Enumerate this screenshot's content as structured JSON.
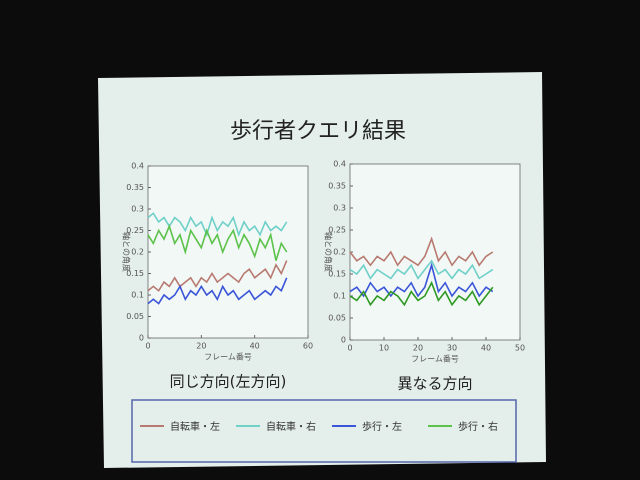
{
  "slide_title": "歩行者クエリ結果",
  "chart_data": [
    {
      "type": "line",
      "title": "同じ方向(左方向)",
      "x_label": "フレーム番号",
      "y_label": "軸との角度",
      "xlim": [
        0,
        60
      ],
      "xticks": [
        0,
        20,
        40,
        60
      ],
      "ylim": [
        0,
        0.4
      ],
      "yticks": [
        0,
        0.05,
        0.1,
        0.15,
        0.2,
        0.25,
        0.3,
        0.35,
        0.4
      ],
      "x": [
        0,
        2,
        4,
        6,
        8,
        10,
        12,
        14,
        16,
        18,
        20,
        22,
        24,
        26,
        28,
        30,
        32,
        34,
        36,
        38,
        40,
        42,
        44,
        46,
        48,
        50,
        52
      ],
      "series": [
        {
          "name": "自転車・左",
          "color": "#b87a70",
          "values": [
            0.11,
            0.12,
            0.11,
            0.13,
            0.12,
            0.14,
            0.12,
            0.13,
            0.14,
            0.12,
            0.14,
            0.13,
            0.15,
            0.13,
            0.14,
            0.15,
            0.14,
            0.13,
            0.15,
            0.16,
            0.14,
            0.15,
            0.16,
            0.14,
            0.17,
            0.15,
            0.18
          ]
        },
        {
          "name": "自転車・右",
          "color": "#6fd0c8",
          "values": [
            0.28,
            0.29,
            0.27,
            0.28,
            0.26,
            0.28,
            0.27,
            0.25,
            0.28,
            0.26,
            0.27,
            0.24,
            0.28,
            0.25,
            0.27,
            0.26,
            0.28,
            0.24,
            0.27,
            0.25,
            0.26,
            0.24,
            0.27,
            0.25,
            0.26,
            0.25,
            0.27
          ]
        },
        {
          "name": "歩行・左",
          "color": "#3a55d8",
          "values": [
            0.08,
            0.09,
            0.08,
            0.1,
            0.09,
            0.1,
            0.12,
            0.09,
            0.11,
            0.1,
            0.12,
            0.1,
            0.11,
            0.09,
            0.12,
            0.1,
            0.11,
            0.09,
            0.1,
            0.11,
            0.09,
            0.1,
            0.11,
            0.1,
            0.12,
            0.11,
            0.14
          ]
        },
        {
          "name": "歩行・右",
          "color": "#5cc24a",
          "values": [
            0.24,
            0.22,
            0.25,
            0.23,
            0.26,
            0.22,
            0.24,
            0.2,
            0.25,
            0.23,
            0.21,
            0.25,
            0.22,
            0.24,
            0.2,
            0.23,
            0.25,
            0.21,
            0.24,
            0.22,
            0.19,
            0.23,
            0.21,
            0.24,
            0.18,
            0.22,
            0.2
          ]
        }
      ]
    },
    {
      "type": "line",
      "title": "異なる方向",
      "x_label": "フレーム番号",
      "y_label": "軸との角度",
      "xlim": [
        0,
        50
      ],
      "xticks": [
        0,
        10,
        20,
        30,
        40,
        50
      ],
      "ylim": [
        0,
        0.4
      ],
      "yticks": [
        0,
        0.05,
        0.1,
        0.15,
        0.2,
        0.25,
        0.3,
        0.35,
        0.4
      ],
      "x": [
        0,
        2,
        4,
        6,
        8,
        10,
        12,
        14,
        16,
        18,
        20,
        22,
        24,
        26,
        28,
        30,
        32,
        34,
        36,
        38,
        40,
        42
      ],
      "series": [
        {
          "color": "#b87a70",
          "values": [
            0.2,
            0.18,
            0.19,
            0.17,
            0.19,
            0.18,
            0.2,
            0.17,
            0.19,
            0.18,
            0.17,
            0.19,
            0.23,
            0.18,
            0.2,
            0.17,
            0.19,
            0.18,
            0.2,
            0.17,
            0.19,
            0.2
          ]
        },
        {
          "color": "#6fd0c8",
          "values": [
            0.16,
            0.15,
            0.17,
            0.14,
            0.16,
            0.15,
            0.14,
            0.16,
            0.15,
            0.17,
            0.14,
            0.16,
            0.18,
            0.15,
            0.16,
            0.14,
            0.16,
            0.15,
            0.17,
            0.14,
            0.15,
            0.16
          ]
        },
        {
          "color": "#3a55d8",
          "values": [
            0.11,
            0.12,
            0.1,
            0.13,
            0.11,
            0.12,
            0.1,
            0.12,
            0.11,
            0.13,
            0.1,
            0.12,
            0.17,
            0.11,
            0.13,
            0.1,
            0.12,
            0.11,
            0.13,
            0.1,
            0.12,
            0.11
          ]
        },
        {
          "color": "#2e9a24",
          "values": [
            0.1,
            0.09,
            0.11,
            0.08,
            0.1,
            0.09,
            0.11,
            0.1,
            0.08,
            0.11,
            0.09,
            0.1,
            0.13,
            0.09,
            0.11,
            0.08,
            0.1,
            0.09,
            0.11,
            0.08,
            0.1,
            0.12
          ]
        }
      ]
    }
  ]
}
